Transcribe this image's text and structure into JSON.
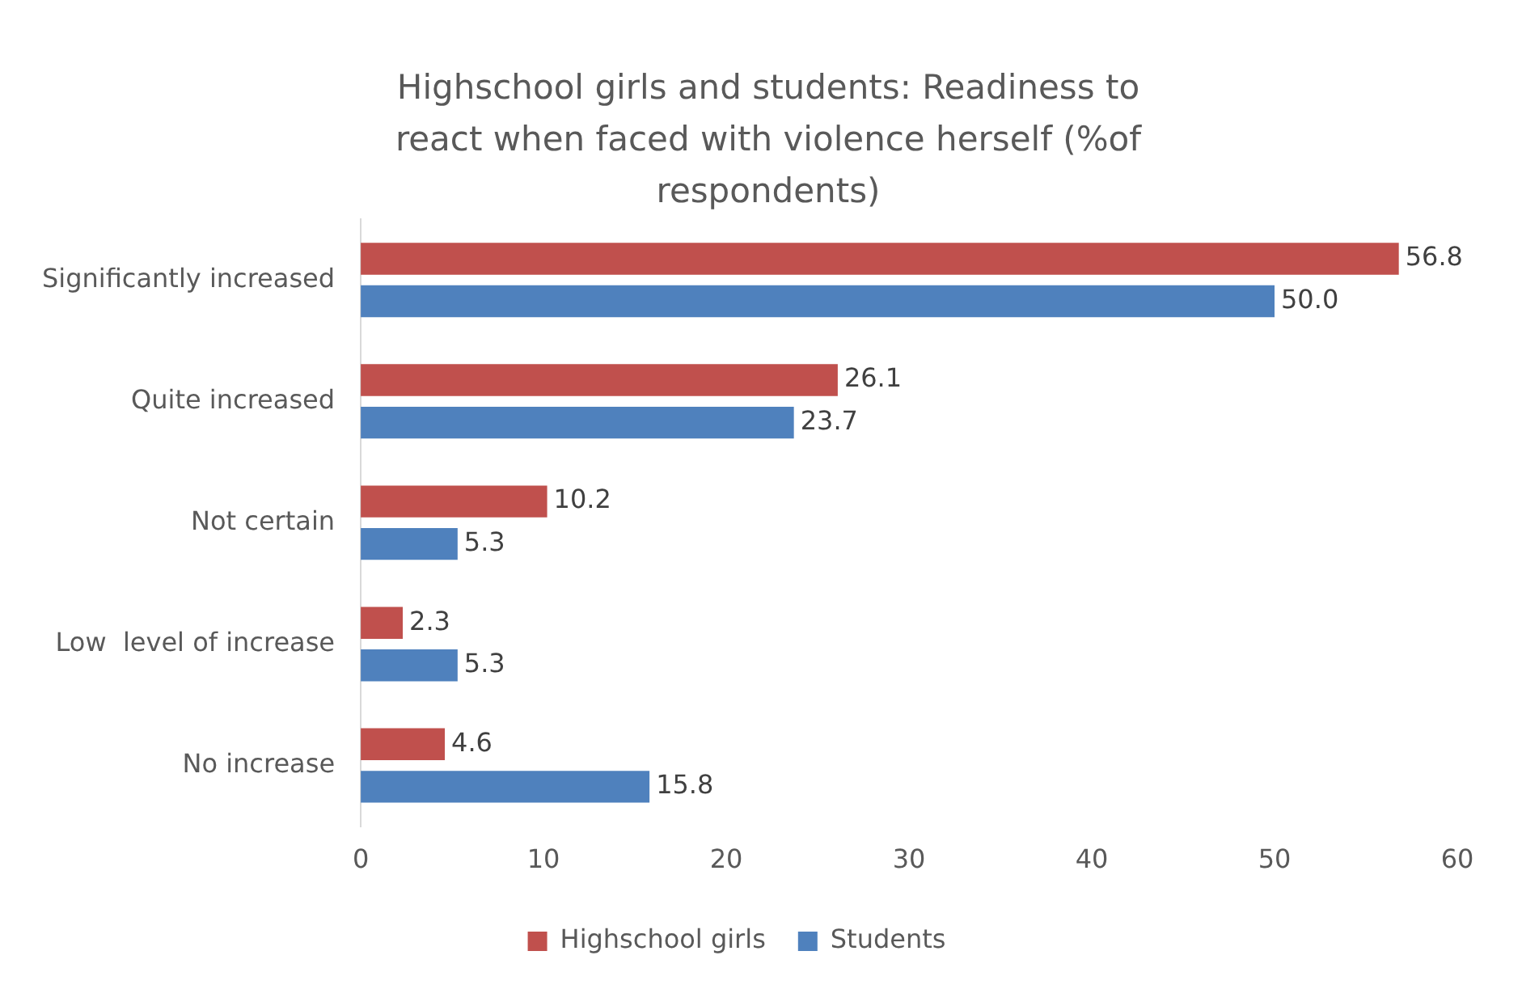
{
  "chart_data": {
    "type": "bar",
    "orientation": "horizontal",
    "title": "Highschool girls and students: Readiness to react when faced with violence herself (%of respondents)",
    "categories": [
      "Significantly increased",
      "Quite increased",
      "Not certain",
      "Low  level of increase",
      "No increase"
    ],
    "series": [
      {
        "name": "Highschool girls",
        "color": "#c0504d",
        "values": [
          56.8,
          26.1,
          10.2,
          2.3,
          4.6
        ],
        "value_labels": [
          "56.8",
          "26.1",
          "10.2",
          "2.3",
          "4.6"
        ]
      },
      {
        "name": "Students",
        "color": "#4f81bd",
        "values": [
          50.0,
          23.7,
          5.3,
          5.3,
          15.8
        ],
        "value_labels": [
          "50.0",
          "23.7",
          "5.3",
          "5.3",
          "15.8"
        ]
      }
    ],
    "xlim": [
      0,
      60
    ],
    "xticks": [
      0,
      10,
      20,
      30,
      40,
      50,
      60
    ],
    "grid": false,
    "legend": "bottom"
  }
}
